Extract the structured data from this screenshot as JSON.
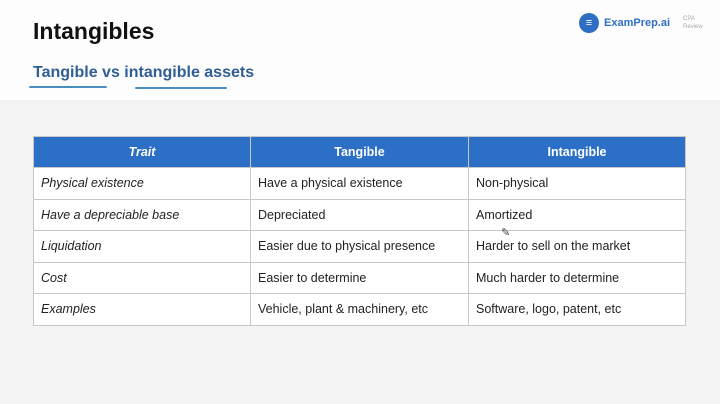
{
  "header": {
    "title": "Intangibles",
    "subtitle": "Tangible vs intangible assets"
  },
  "logo": {
    "brand": "ExamPrep.ai",
    "side_line1": "CPA",
    "side_line2": "Review"
  },
  "table": {
    "headers": [
      "Trait",
      "Tangible",
      "Intangible"
    ],
    "rows": [
      [
        "Physical existence",
        "Have a physical existence",
        "Non-physical"
      ],
      [
        "Have a depreciable base",
        "Depreciated",
        "Amortized"
      ],
      [
        "Liquidation",
        "Easier due to physical presence",
        "Harder to sell on the market"
      ],
      [
        "Cost",
        "Easier to determine",
        "Much harder to determine"
      ],
      [
        "Examples",
        "Vehicle, plant & machinery, etc",
        "Software, logo, patent, etc"
      ]
    ]
  },
  "colors": {
    "header_bg": "#2b6fc7",
    "subtitle": "#2f5f95",
    "brand": "#2f6fc3"
  }
}
